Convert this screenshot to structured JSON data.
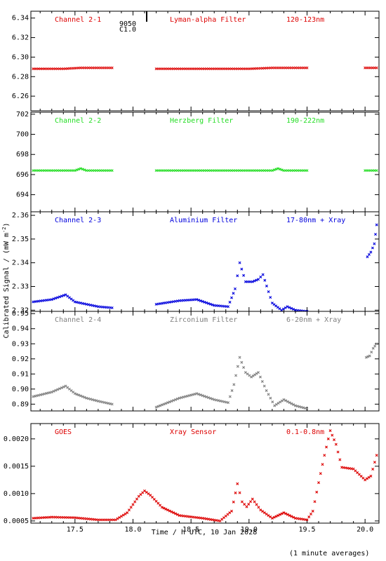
{
  "xlabel": "Time / h UTC, 10 Jan 2028",
  "ylabel": "Calibrated Signal / (mW m",
  "ylabel_sup": "-2",
  "ylabel_end": ")",
  "footnote": "(1 minute averages)",
  "flare": {
    "line1": "9050",
    "line2": "C1.0"
  },
  "xticks": [
    "17.5",
    "18.0",
    "18.5",
    "19.0",
    "19.5",
    "20.0"
  ],
  "chart_data": [
    {
      "type": "scatter",
      "channel": "Channel 2-1",
      "filter": "Lyman-alpha Filter",
      "band": "120-123nm",
      "color": "#dd0000",
      "ylim": [
        6.245,
        6.347
      ],
      "yticks": [
        "6.26",
        "6.28",
        "6.30",
        "6.32",
        "6.34"
      ],
      "yticks_v": [
        6.26,
        6.28,
        6.3,
        6.32,
        6.34
      ],
      "segments": [
        {
          "x": [
            17.14,
            17.25,
            17.4,
            17.55,
            17.7,
            17.82
          ],
          "y": [
            6.288,
            6.288,
            6.288,
            6.289,
            6.289,
            6.289
          ]
        },
        {
          "x": [
            18.2,
            18.4,
            18.6,
            18.8,
            19.0,
            19.2,
            19.4,
            19.5
          ],
          "y": [
            6.288,
            6.288,
            6.288,
            6.288,
            6.288,
            6.289,
            6.289,
            6.289
          ]
        },
        {
          "x": [
            20.0,
            20.1
          ],
          "y": [
            6.289,
            6.289
          ]
        }
      ]
    },
    {
      "type": "scatter",
      "channel": "Channel 2-2",
      "filter": "Herzberg Filter",
      "band": "190-222nm",
      "color": "#22dd22",
      "ylim": [
        692.3,
        702.2
      ],
      "yticks": [
        "694",
        "696",
        "698",
        "700",
        "702"
      ],
      "yticks_v": [
        694,
        696,
        698,
        700,
        702
      ],
      "segments": [
        {
          "x": [
            17.14,
            17.3,
            17.5,
            17.55,
            17.6,
            17.82
          ],
          "y": [
            696.4,
            696.4,
            696.4,
            696.6,
            696.4,
            696.4
          ]
        },
        {
          "x": [
            18.2,
            18.6,
            19.0,
            19.2,
            19.25,
            19.3,
            19.5
          ],
          "y": [
            696.4,
            696.4,
            696.4,
            696.4,
            696.6,
            696.4,
            696.4
          ]
        },
        {
          "x": [
            20.0,
            20.1
          ],
          "y": [
            696.4,
            696.4
          ]
        }
      ]
    },
    {
      "type": "scatter",
      "channel": "Channel 2-3",
      "filter": "Aluminium Filter",
      "band": "17-80nm + Xray",
      "color": "#0000dd",
      "ylim": [
        2.3195,
        2.3615
      ],
      "yticks": [
        "2.32",
        "2.33",
        "2.34",
        "2.35",
        "2.36"
      ],
      "yticks_v": [
        2.32,
        2.33,
        2.34,
        2.35,
        2.36
      ],
      "segments": [
        {
          "x": [
            17.14,
            17.3,
            17.42,
            17.5,
            17.6,
            17.7,
            17.82
          ],
          "y": [
            2.3235,
            2.3245,
            2.3265,
            2.3235,
            2.3225,
            2.3215,
            2.321
          ]
        },
        {
          "x": [
            18.2,
            18.4,
            18.55,
            18.7,
            18.82,
            18.88,
            18.92,
            18.97,
            19.03,
            19.08,
            19.12,
            19.2,
            19.28,
            19.33,
            19.4,
            19.5
          ],
          "y": [
            2.3225,
            2.324,
            2.3245,
            2.322,
            2.3215,
            2.329,
            2.34,
            2.332,
            2.332,
            2.333,
            2.335,
            2.323,
            2.32,
            2.3215,
            2.32,
            2.3195
          ]
        },
        {
          "x": [
            20.02,
            20.05,
            20.08,
            20.1
          ],
          "y": [
            2.3425,
            2.3445,
            2.348,
            2.356
          ]
        }
      ]
    },
    {
      "type": "scatter",
      "channel": "Channel 2-4",
      "filter": "Zirconium Filter",
      "band": "6-20nm + Xray",
      "color": "#808080",
      "ylim": [
        0.8855,
        0.9515
      ],
      "yticks": [
        "0.89",
        "0.90",
        "0.91",
        "0.92",
        "0.93",
        "0.94",
        "0.95"
      ],
      "yticks_v": [
        0.89,
        0.9,
        0.91,
        0.92,
        0.93,
        0.94,
        0.95
      ],
      "segments": [
        {
          "x": [
            17.14,
            17.3,
            17.42,
            17.5,
            17.6,
            17.7,
            17.82
          ],
          "y": [
            0.895,
            0.898,
            0.902,
            0.897,
            0.894,
            0.892,
            0.89
          ]
        },
        {
          "x": [
            18.2,
            18.4,
            18.55,
            18.7,
            18.82,
            18.87,
            18.92,
            18.97,
            19.02,
            19.08,
            19.15,
            19.22,
            19.3,
            19.4,
            19.5
          ],
          "y": [
            0.888,
            0.894,
            0.897,
            0.893,
            0.891,
            0.903,
            0.921,
            0.911,
            0.908,
            0.911,
            0.899,
            0.889,
            0.893,
            0.889,
            0.887
          ]
        },
        {
          "x": [
            20.01,
            20.04,
            20.07,
            20.1
          ],
          "y": [
            0.921,
            0.922,
            0.927,
            0.93
          ]
        }
      ]
    },
    {
      "type": "scatter",
      "channel": "GOES",
      "filter": "Xray Sensor",
      "band": "0.1-0.8nm",
      "color": "#dd0000",
      "ylim": [
        0.00046,
        0.00228
      ],
      "yticks": [
        "0.0005",
        "0.0010",
        "0.0015",
        "0.0020"
      ],
      "yticks_v": [
        0.0005,
        0.001,
        0.0015,
        0.002
      ],
      "segments": [
        {
          "x": [
            17.14,
            17.3,
            17.5,
            17.7,
            17.85,
            17.95,
            18.05,
            18.1,
            18.15,
            18.25,
            18.4,
            18.6,
            18.75,
            18.85,
            18.9,
            18.94,
            18.98,
            19.03,
            19.1,
            19.2,
            19.3,
            19.4,
            19.5,
            19.55,
            19.6,
            19.65,
            19.7,
            19.75,
            19.8,
            19.9,
            20.0,
            20.05,
            20.1
          ],
          "y": [
            0.00055,
            0.00057,
            0.00056,
            0.00052,
            0.00052,
            0.00065,
            0.00095,
            0.00105,
            0.00097,
            0.00075,
            0.0006,
            0.00055,
            0.0005,
            0.00068,
            0.00118,
            0.00085,
            0.00076,
            0.0009,
            0.0007,
            0.00055,
            0.00065,
            0.00055,
            0.00052,
            0.00068,
            0.0012,
            0.0017,
            0.00215,
            0.0019,
            0.00148,
            0.00145,
            0.00125,
            0.00132,
            0.0017
          ]
        }
      ]
    }
  ]
}
